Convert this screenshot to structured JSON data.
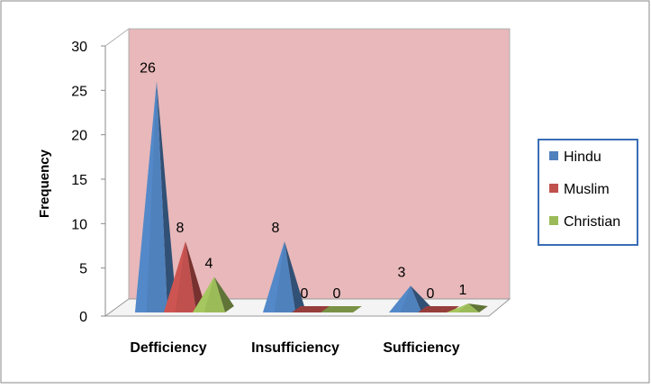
{
  "chart_data": {
    "type": "bar",
    "variant": "3d-pyramid",
    "categories": [
      "Defficiency",
      "Insufficiency",
      "Sufficiency"
    ],
    "series": [
      {
        "name": "Hindu",
        "values": [
          26,
          8,
          3
        ],
        "color": "#4F81BD"
      },
      {
        "name": "Muslim",
        "values": [
          8,
          0,
          0
        ],
        "color": "#C0504D"
      },
      {
        "name": "Christian",
        "values": [
          4,
          0,
          1
        ],
        "color": "#9BBB59"
      }
    ],
    "ylabel": "Frequency",
    "ylim": [
      0,
      30
    ],
    "yticks": [
      0,
      5,
      10,
      15,
      20,
      25,
      30
    ],
    "data_labels": true,
    "legend_position": "right",
    "colors": {
      "plot_back_wall": "#E8B8BA",
      "floor": "#F4F4F4",
      "legend_border": "#3A6DB5",
      "outer_border": "#8A8A8A"
    }
  }
}
